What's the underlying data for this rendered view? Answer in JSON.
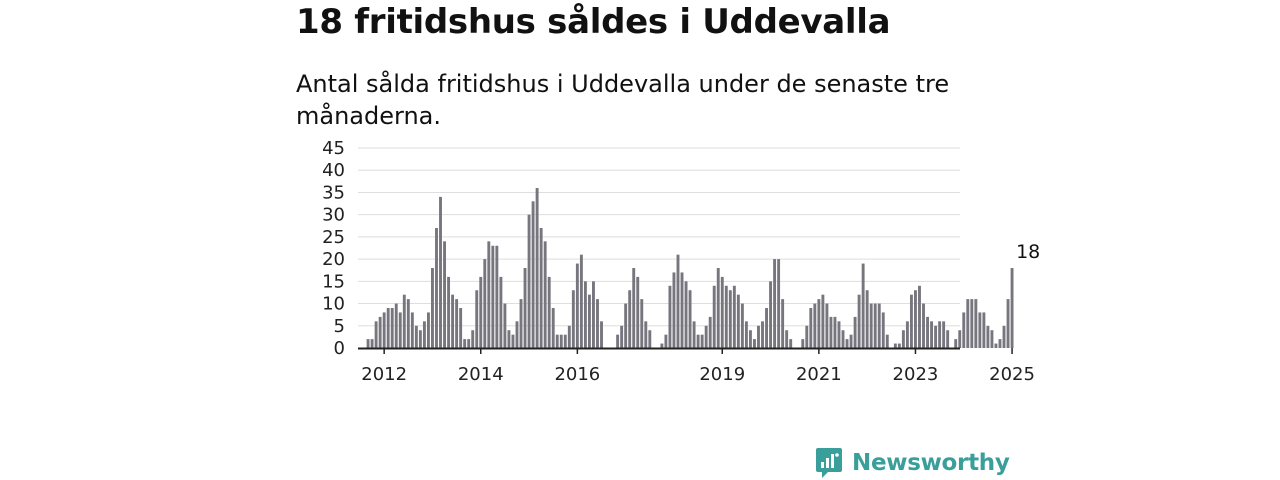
{
  "title": "18 fritidshus såldes i Uddevalla",
  "subtitle": "Antal sålda fritidshus i Uddevalla under de senaste tre månaderna.",
  "brand": {
    "name": "Newsworthy",
    "icon": "newsworthy-logo-icon",
    "color": "#3a9e9a"
  },
  "colors": {
    "bar": "#77767e",
    "highlight": "#1f9e9e",
    "grid": "#dedede",
    "axis": "#222222"
  },
  "chart_data": {
    "type": "bar",
    "title": "",
    "xlabel": "",
    "ylabel": "",
    "ylim": [
      0,
      45
    ],
    "yticks": [
      "0",
      "5",
      "10",
      "15",
      "20",
      "25",
      "30",
      "35",
      "40",
      "45"
    ],
    "xticks": [
      {
        "label": "2012",
        "x": "2012-01"
      },
      {
        "label": "2014",
        "x": "2014-01"
      },
      {
        "label": "2016",
        "x": "2016-01"
      },
      {
        "label": "2019",
        "x": "2019-01"
      },
      {
        "label": "2021",
        "x": "2021-01"
      },
      {
        "label": "2023",
        "x": "2023-01"
      },
      {
        "label": "2025",
        "x": "2025-01"
      }
    ],
    "grid": true,
    "legend": "none",
    "series": [
      {
        "start": "2011-09",
        "frequency": "monthly",
        "values": [
          2,
          2,
          6,
          7,
          8,
          9,
          9,
          10,
          8,
          12,
          11,
          8,
          5,
          4,
          6,
          8,
          18,
          27,
          34,
          24,
          16,
          12,
          11,
          9,
          2,
          2,
          4,
          13,
          16,
          20,
          24,
          23,
          23,
          16,
          10,
          4,
          3,
          6,
          11,
          18,
          30,
          33,
          36,
          27,
          24,
          16,
          9,
          3,
          3,
          3,
          5,
          13,
          19,
          21,
          15,
          12,
          15,
          11,
          6,
          null,
          null,
          null,
          3,
          5,
          10,
          13,
          18,
          16,
          11,
          6,
          4,
          null,
          null,
          1,
          3,
          14,
          17,
          21,
          17,
          15,
          13,
          6,
          3,
          3,
          5,
          7,
          14,
          18,
          16,
          14,
          13,
          14,
          12,
          10,
          6,
          4,
          2,
          5,
          6,
          9,
          15,
          20,
          20,
          11,
          4,
          2,
          null,
          null,
          2,
          5,
          9,
          10,
          11,
          12,
          10,
          7,
          7,
          6,
          4,
          2,
          3,
          7,
          12,
          19,
          13,
          10,
          10,
          10,
          8,
          3,
          null,
          1,
          1,
          4,
          6,
          12,
          13,
          14,
          10,
          7,
          6,
          5,
          6,
          6,
          4,
          null,
          2,
          4,
          8,
          11,
          11,
          11,
          8,
          8,
          5,
          4,
          1,
          2,
          5,
          11,
          18
        ]
      }
    ],
    "highlight": {
      "x": "2025-05",
      "value": 18,
      "label": "18"
    }
  }
}
